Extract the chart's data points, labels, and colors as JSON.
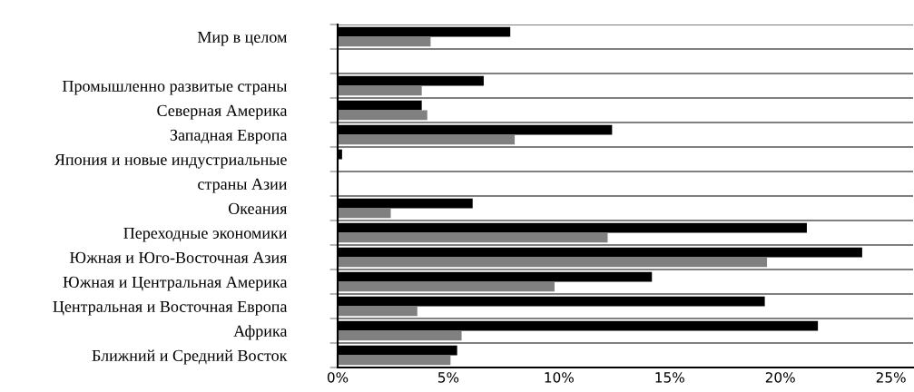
{
  "chart_data": {
    "type": "bar",
    "orientation": "horizontal",
    "categories": [
      "Мир в целом",
      null,
      "Промышленно развитые страны",
      "Северная Америка",
      "Западная Европа",
      "Япония и новые индустриальные",
      "страны Азии",
      "Океания",
      "Переходные экономики",
      "Южная и Юго-Восточная Азия",
      "Южная и Центральная Америка",
      "Центральная и Восточная Европа",
      "Африка",
      "Ближний и Средний Восток"
    ],
    "series": [
      {
        "color": "#000000",
        "values": [
          7.8,
          null,
          6.6,
          3.8,
          12.4,
          0.2,
          null,
          6.1,
          21.2,
          23.7,
          14.2,
          19.3,
          21.7,
          5.4
        ]
      },
      {
        "color": "#808080",
        "values": [
          4.2,
          null,
          3.8,
          4.05,
          8.0,
          0,
          null,
          2.4,
          12.2,
          19.4,
          9.8,
          3.6,
          5.6,
          5.1
        ]
      }
    ],
    "xlim": [
      0,
      26
    ],
    "xticks": [
      {
        "value": 0,
        "label": "0%"
      },
      {
        "value": 5,
        "label": "5%"
      },
      {
        "value": 10,
        "label": "10%"
      },
      {
        "value": 15,
        "label": "15%"
      },
      {
        "value": 20,
        "label": "20%"
      },
      {
        "value": 25,
        "label": "25%"
      }
    ],
    "grid": "y"
  }
}
